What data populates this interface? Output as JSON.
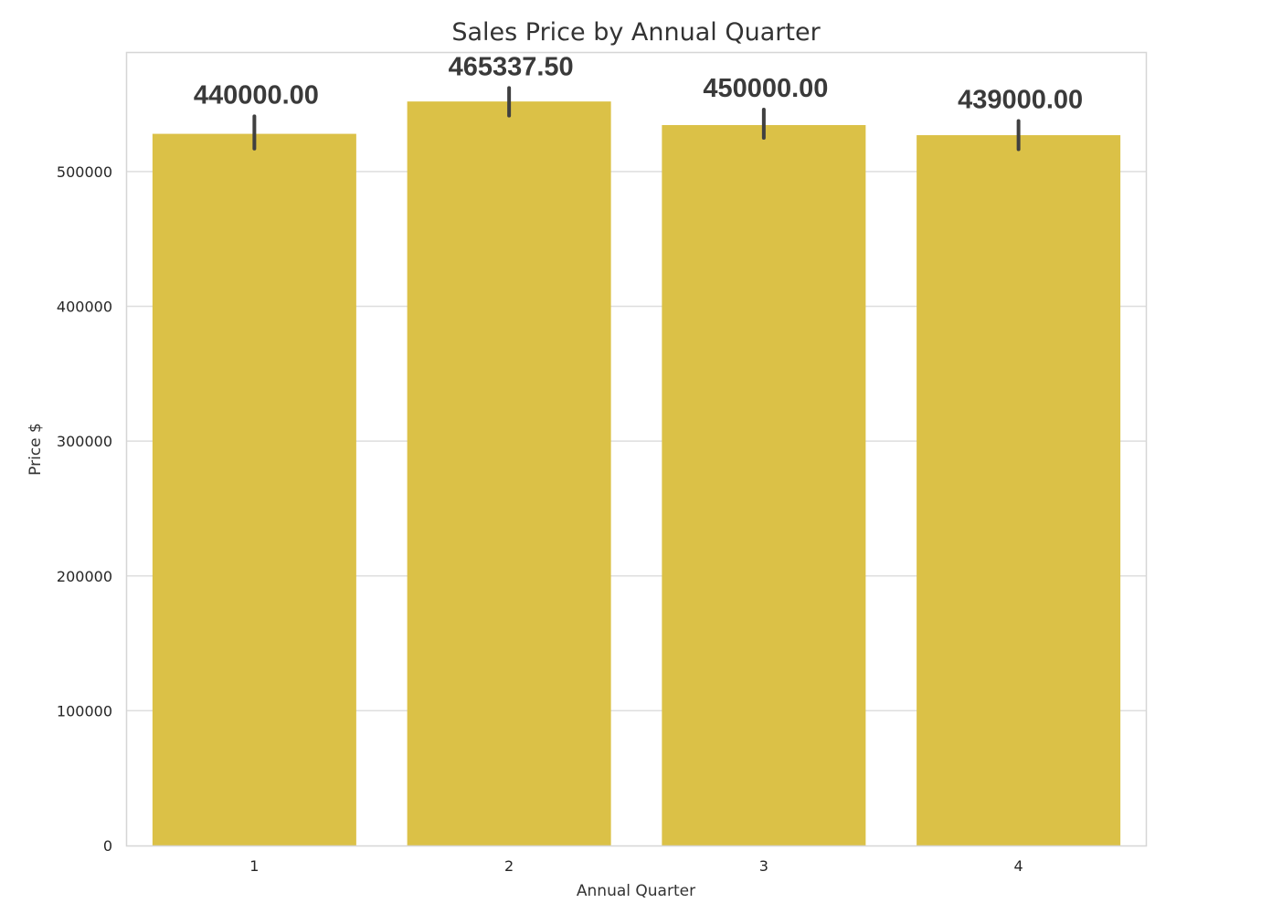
{
  "chart_data": {
    "type": "bar",
    "title": "Sales Price by Annual Quarter",
    "xlabel": "Annual Quarter",
    "ylabel": "Price $",
    "categories": [
      "1",
      "2",
      "3",
      "4"
    ],
    "values": [
      528000,
      552000,
      534500,
      527000
    ],
    "error_bars": [
      [
        517000,
        541000
      ],
      [
        541500,
        562000
      ],
      [
        525000,
        546000
      ],
      [
        516500,
        537500
      ]
    ],
    "data_labels": [
      "440000.00",
      "465337.50",
      "450000.00",
      "439000.00"
    ],
    "y_ticks": [
      0,
      100000,
      200000,
      300000,
      400000,
      500000
    ],
    "y_tick_labels": [
      "0",
      "100000",
      "200000",
      "300000",
      "400000",
      "500000"
    ],
    "ylim": [
      0,
      588000
    ],
    "grid": true,
    "colors": {
      "bar": "#dbc147",
      "error_bar": "#404040",
      "grid": "#dedede",
      "frame": "#d6d6d6"
    }
  }
}
